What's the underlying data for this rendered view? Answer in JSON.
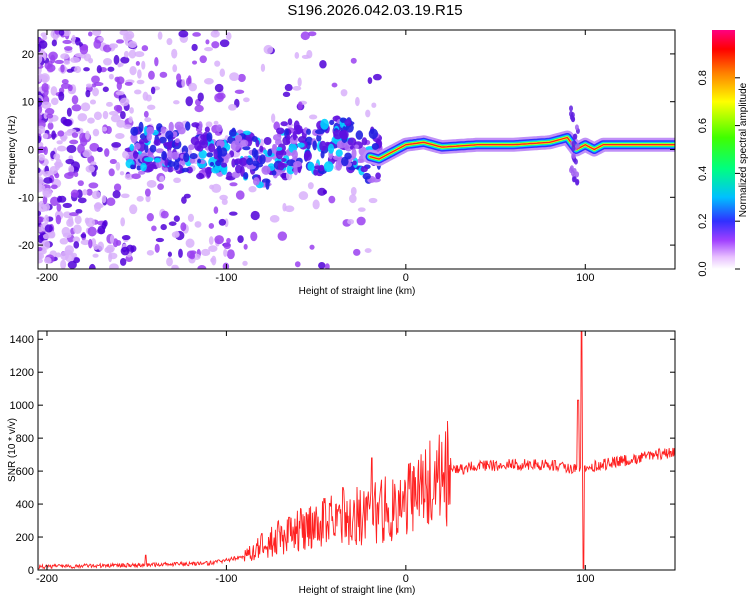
{
  "title": "S196.2026.042.03.19.R15",
  "colorbar_ticks": [
    "0.0",
    "0.2",
    "0.4",
    "0.6",
    "0.8"
  ],
  "chart_data": [
    {
      "type": "heatmap",
      "title": "S196.2026.042.03.19.R15",
      "xlabel": "Height of straight line (km)",
      "ylabel": "Frequency (Hz)",
      "xlim": [
        -205,
        150
      ],
      "ylim": [
        -25,
        25
      ],
      "xticks": [
        -200,
        -100,
        0,
        100
      ],
      "yticks": [
        -20,
        -10,
        0,
        10,
        20
      ],
      "colorbar_label": "Normalized spectral amplitude",
      "colorbar_range": [
        0,
        1
      ],
      "ridge": [
        {
          "x": -150,
          "f": 0
        },
        {
          "x": -120,
          "f": 0.5
        },
        {
          "x": -90,
          "f": -1
        },
        {
          "x": -75,
          "f": -5
        },
        {
          "x": -68,
          "f": 0.5
        },
        {
          "x": -50,
          "f": 0
        },
        {
          "x": -35,
          "f": 2
        },
        {
          "x": -25,
          "f": -1
        },
        {
          "x": -15,
          "f": -2
        },
        {
          "x": -10,
          "f": -1
        },
        {
          "x": 0,
          "f": 1
        },
        {
          "x": 10,
          "f": 1.5
        },
        {
          "x": 20,
          "f": 0.5
        },
        {
          "x": 40,
          "f": 1
        },
        {
          "x": 60,
          "f": 1
        },
        {
          "x": 80,
          "f": 1.5
        },
        {
          "x": 90,
          "f": 2.5
        },
        {
          "x": 95,
          "f": 0
        },
        {
          "x": 100,
          "f": 1
        },
        {
          "x": 105,
          "f": 0
        },
        {
          "x": 110,
          "f": 1
        },
        {
          "x": 150,
          "f": 1
        }
      ]
    },
    {
      "type": "line",
      "xlabel": "Height of straight line (km)",
      "ylabel": "SNR (10 * v/v)",
      "xlim": [
        -205,
        150
      ],
      "ylim": [
        0,
        1450
      ],
      "xticks": [
        -200,
        -100,
        0,
        100
      ],
      "yticks": [
        0,
        200,
        400,
        600,
        800,
        1000,
        1200,
        1400
      ],
      "series": [
        {
          "name": "SNR",
          "color": "#ff2020",
          "envelope": [
            {
              "x": -205,
              "y": 20
            },
            {
              "x": -150,
              "y": 30
            },
            {
              "x": -110,
              "y": 40
            },
            {
              "x": -90,
              "y": 80
            },
            {
              "x": -80,
              "y": 150
            },
            {
              "x": -60,
              "y": 250
            },
            {
              "x": -40,
              "y": 300
            },
            {
              "x": -25,
              "y": 330
            },
            {
              "x": -15,
              "y": 350
            },
            {
              "x": 0,
              "y": 420
            },
            {
              "x": 15,
              "y": 520
            },
            {
              "x": 25,
              "y": 600
            },
            {
              "x": 40,
              "y": 630
            },
            {
              "x": 60,
              "y": 640
            },
            {
              "x": 80,
              "y": 640
            },
            {
              "x": 90,
              "y": 620
            },
            {
              "x": 100,
              "y": 620
            },
            {
              "x": 120,
              "y": 660
            },
            {
              "x": 140,
              "y": 700
            },
            {
              "x": 150,
              "y": 720
            }
          ],
          "spikes": [
            {
              "x": -145,
              "y": 90
            },
            {
              "x": -65,
              "y": 320
            },
            {
              "x": -35,
              "y": 500
            },
            {
              "x": -19,
              "y": 680
            },
            {
              "x": 96,
              "y": 1030
            },
            {
              "x": 98,
              "y": 1450
            },
            {
              "x": 99,
              "y": 10
            }
          ]
        }
      ]
    }
  ]
}
